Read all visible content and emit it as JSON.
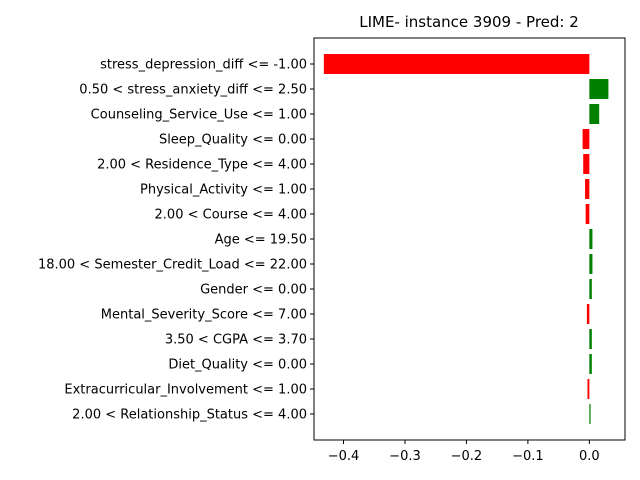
{
  "chart_data": {
    "type": "bar",
    "orientation": "horizontal",
    "title": "LIME- instance 3909 - Pred: 2",
    "xlabel": "",
    "ylabel": "",
    "xlim": [
      -0.448,
      0.058
    ],
    "xticks": [
      -0.4,
      -0.3,
      -0.2,
      -0.1,
      0.0
    ],
    "xtick_labels": [
      "−0.4",
      "−0.3",
      "−0.2",
      "−0.1",
      "0.0"
    ],
    "positive_color": "#008000",
    "negative_color": "#ff0000",
    "grid": false,
    "categories": [
      "stress_depression_diff <= -1.00",
      "0.50 < stress_anxiety_diff <= 2.50",
      "Counseling_Service_Use <= 1.00",
      "Sleep_Quality <= 0.00",
      "2.00 < Residence_Type <= 4.00",
      "Physical_Activity <= 1.00",
      "2.00 < Course <= 4.00",
      "Age <= 19.50",
      "18.00 < Semester_Credit_Load <= 22.00",
      "Gender <= 0.00",
      "Mental_Severity_Score <= 7.00",
      "3.50 < CGPA <= 3.70",
      "Diet_Quality <= 0.00",
      "Extracurricular_Involvement <= 1.00",
      "2.00 < Relationship_Status <= 4.00"
    ],
    "values": [
      -0.432,
      0.031,
      0.016,
      -0.011,
      -0.01,
      -0.007,
      -0.006,
      0.005,
      0.005,
      0.004,
      -0.004,
      0.004,
      0.004,
      -0.003,
      0.002
    ]
  }
}
